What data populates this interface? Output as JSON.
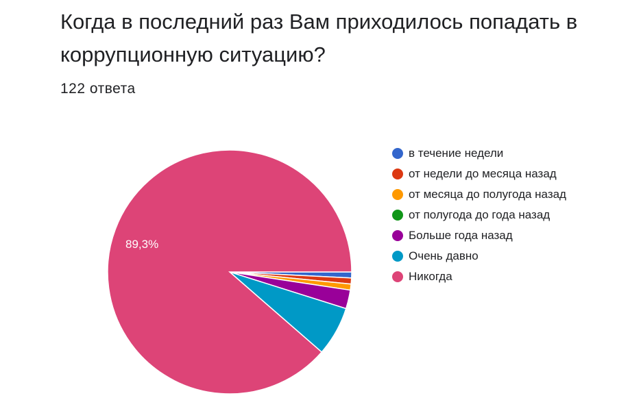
{
  "header": {
    "title": "Когда в последний раз Вам приходилось попадать в коррупционную ситуацию?",
    "responses": "122 ответа"
  },
  "chart_data": {
    "type": "pie",
    "title": "Когда в последний раз Вам приходилось попадать в коррупционную ситуацию?",
    "total_responses": 122,
    "categories": [
      "в течение недели",
      "от недели до месяца назад",
      "от месяца до полугода назад",
      "от полугода до года назад",
      "Больше года назад",
      "Очень давно",
      "Никогда"
    ],
    "values": [
      0.8,
      0.8,
      0.8,
      0,
      2.5,
      6.6,
      89.3
    ],
    "colors": [
      "#3366cc",
      "#dc3912",
      "#ff9900",
      "#109618",
      "#990099",
      "#0099c6",
      "#dd4477"
    ],
    "data_labels": [
      {
        "category": "Никогда",
        "text": "89,3%"
      }
    ],
    "legend_position": "right"
  }
}
